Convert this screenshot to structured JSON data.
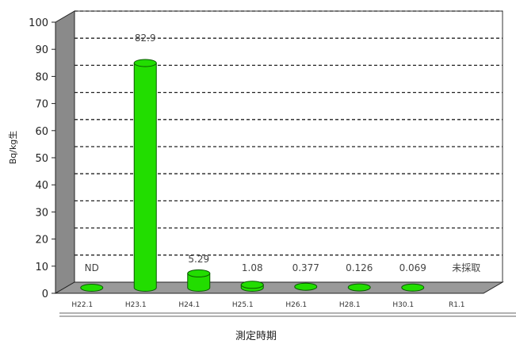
{
  "chart_data": {
    "type": "bar",
    "ylabel": "Bq/kg生",
    "xlabel": "測定時期",
    "ylim": [
      0,
      100
    ],
    "yticks": [
      0,
      10,
      20,
      30,
      40,
      50,
      60,
      70,
      80,
      90,
      100
    ],
    "grid": true,
    "categories": [
      "H22.1",
      "H23.1",
      "H24.1",
      "H25.1",
      "H26.1",
      "H28.1",
      "H30.1",
      "R1.1"
    ],
    "values": [
      0,
      82.9,
      5.29,
      1.08,
      0.377,
      0.126,
      0.069,
      null
    ],
    "data_labels": [
      "ND",
      "82.9",
      "5.29",
      "1.08",
      "0.377",
      "0.126",
      "0.069",
      "未採取"
    ],
    "bar_color": "#22dd00"
  }
}
